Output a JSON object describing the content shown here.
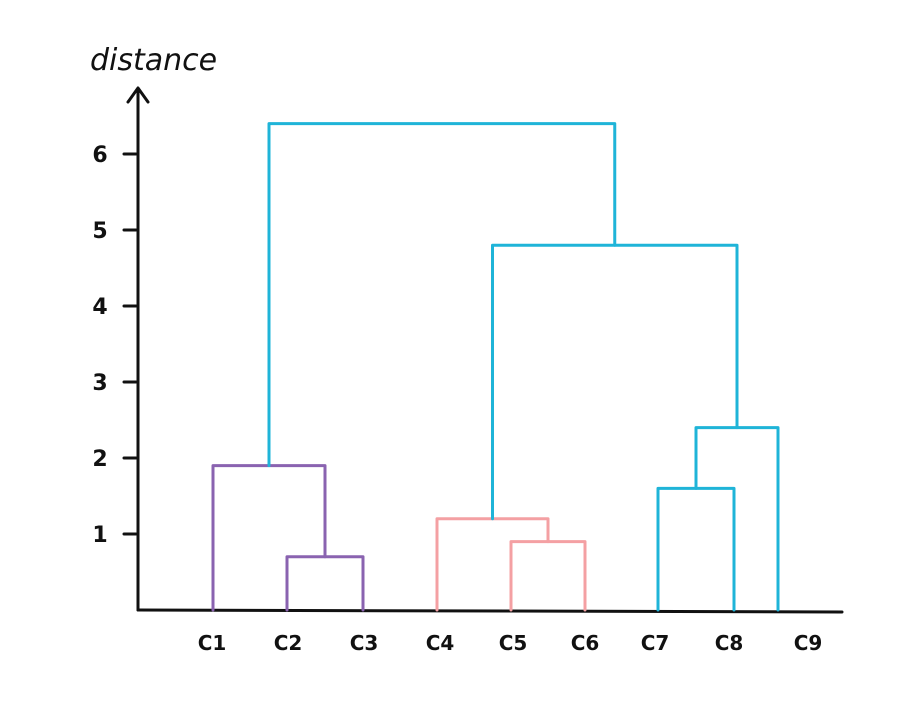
{
  "chart_data": {
    "type": "dendrogram",
    "ylabel": "distance",
    "yticks": [
      1,
      2,
      3,
      4,
      5,
      6
    ],
    "ylim": [
      0,
      7
    ],
    "grid": false,
    "leaves": [
      "C1",
      "C2",
      "C3",
      "C4",
      "C5",
      "C6",
      "C7",
      "C8",
      "C9"
    ],
    "clusters": [
      {
        "id": "A",
        "children": [
          "C2",
          "C3"
        ],
        "height": 0.7,
        "color": "#8a63b0"
      },
      {
        "id": "B",
        "children": [
          "C1",
          "A"
        ],
        "height": 1.9,
        "color": "#8a63b0"
      },
      {
        "id": "D",
        "children": [
          "C5",
          "C6"
        ],
        "height": 0.9,
        "color": "#f4a0a3"
      },
      {
        "id": "E",
        "children": [
          "C4",
          "D"
        ],
        "height": 1.2,
        "color": "#f4a0a3"
      },
      {
        "id": "F",
        "children": [
          "C7",
          "C8"
        ],
        "height": 1.6,
        "color": "#1fb4d8"
      },
      {
        "id": "G",
        "children": [
          "F",
          "C9"
        ],
        "height": 2.4,
        "color": "#1fb4d8"
      },
      {
        "id": "H",
        "children": [
          "E",
          "G"
        ],
        "height": 4.8,
        "color": "#1fb4d8"
      },
      {
        "id": "I",
        "children": [
          "B",
          "H"
        ],
        "height": 6.4,
        "color": "#1fb4d8"
      }
    ]
  }
}
